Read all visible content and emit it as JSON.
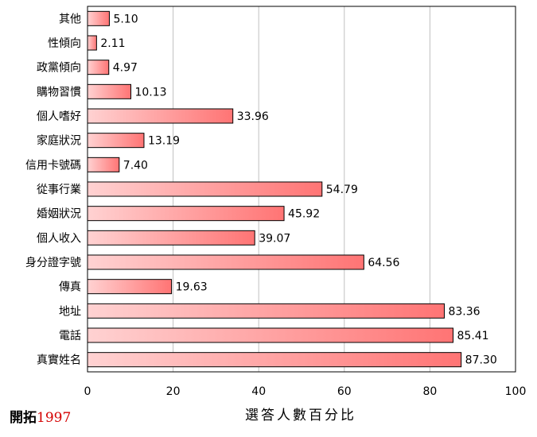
{
  "chart_data": {
    "type": "bar",
    "orientation": "horizontal",
    "categories": [
      "其他",
      "性傾向",
      "政黨傾向",
      "購物習慣",
      "個人嗜好",
      "家庭狀況",
      "信用卡號碼",
      "從事行業",
      "婚姻狀況",
      "個人收入",
      "身分證字號",
      "傳真",
      "地址",
      "電話",
      "真實姓名"
    ],
    "values": [
      5.1,
      2.11,
      4.97,
      10.13,
      33.96,
      13.19,
      7.4,
      54.79,
      45.92,
      39.07,
      64.56,
      19.63,
      83.36,
      85.41,
      87.3
    ],
    "value_labels": [
      "5.10",
      "2.11",
      "4.97",
      "10.13",
      "33.96",
      "13.19",
      "7.40",
      "54.79",
      "45.92",
      "39.07",
      "64.56",
      "19.63",
      "83.36",
      "85.41",
      "87.30"
    ],
    "xlabel": "選答人數百分比",
    "xlim": [
      0,
      100
    ],
    "xticks": [
      "0",
      "20",
      "40",
      "60",
      "80",
      "100"
    ],
    "grid": "vertical",
    "legend": "none",
    "colors": {
      "bar_start": "#ffd2d2",
      "bar_end": "#ff7474",
      "bar_border": "#000000",
      "grid": "#c0c0c0"
    }
  },
  "logo": {
    "brand": "開拓",
    "year": "1997"
  }
}
